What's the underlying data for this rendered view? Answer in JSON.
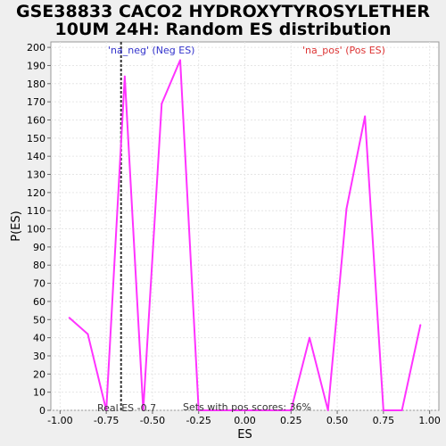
{
  "title_line1": "GSE38833 CACO2 HYDROXYTYROSYLETHER",
  "title_line2": "10UM 24H: Random ES distribution",
  "colors": {
    "background": "#efefef",
    "plot_background": "#ffffff",
    "series": "#ff33ff",
    "neg_label": "#3333cc",
    "pos_label": "#dd3333",
    "real_es_line": "#333333",
    "grid": "#e6e6e6"
  },
  "chart_data": {
    "type": "line",
    "title": "GSE38833 CACO2 HYDROXYTYROSYLETHER 10UM 24H: Random ES distribution",
    "xlabel": "ES",
    "ylabel": "P(ES)",
    "xlim": [
      -1.05,
      1.05
    ],
    "ylim": [
      0,
      203
    ],
    "x_ticks": [
      -1.0,
      -0.75,
      -0.5,
      -0.25,
      0.0,
      0.25,
      0.5,
      0.75,
      1.0
    ],
    "x_tick_labels": [
      "-1.00",
      "-0.75",
      "-0.50",
      "-0.25",
      "0.00",
      "0.25",
      "0.50",
      "0.75",
      "1.00"
    ],
    "y_ticks": [
      0,
      10,
      20,
      30,
      40,
      50,
      60,
      70,
      80,
      90,
      100,
      110,
      120,
      130,
      140,
      150,
      160,
      170,
      180,
      190,
      200
    ],
    "grid": true,
    "series": [
      {
        "x": [
          -0.95,
          -0.85,
          -0.75,
          -0.65,
          -0.55,
          -0.45,
          -0.35,
          -0.25,
          -0.15,
          -0.05,
          0.05,
          0.15,
          0.25,
          0.35,
          0.45,
          0.55,
          0.65,
          0.75,
          0.85,
          0.95
        ],
        "y": [
          51,
          42,
          0,
          184,
          0,
          169,
          193,
          0,
          0,
          0,
          0,
          0,
          0,
          40,
          0,
          111,
          162,
          0,
          0,
          47
        ]
      }
    ],
    "real_es": -0.67,
    "annotations": {
      "neg_label": "'na_neg' (Neg ES)",
      "pos_label": "'na_pos' (Pos ES)",
      "real_es_text": "Real ES -0.7",
      "pos_scores_text": "Sets with pos scores: 36%"
    }
  }
}
